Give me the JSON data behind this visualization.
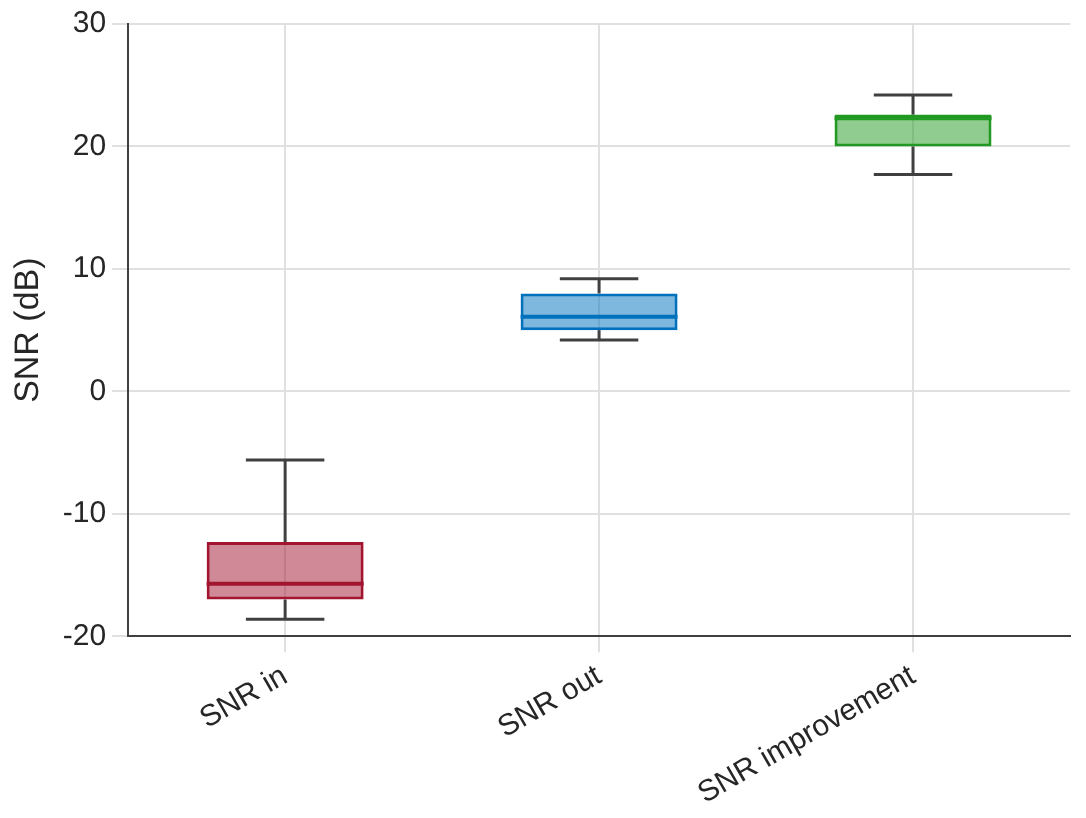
{
  "chart_data": {
    "type": "box",
    "ylabel": "SNR (dB)",
    "categories": [
      "SNR in",
      "SNR out",
      "SNR improvement"
    ],
    "boxes": [
      {
        "low": -18.6,
        "q1": -17.0,
        "median": -15.7,
        "q3": -12.3,
        "high": -5.6
      },
      {
        "low": 4.2,
        "q1": 5.0,
        "median": 6.1,
        "q3": 8.0,
        "high": 9.2
      },
      {
        "low": 17.7,
        "q1": 20.0,
        "median": 22.3,
        "q3": 22.6,
        "high": 24.2
      }
    ],
    "colors": [
      "#a2142f",
      "#0072bd",
      "#229922"
    ],
    "ylim": [
      -20,
      30
    ],
    "yticks": [
      -20,
      -10,
      0,
      10,
      20,
      30
    ],
    "grid": true
  }
}
